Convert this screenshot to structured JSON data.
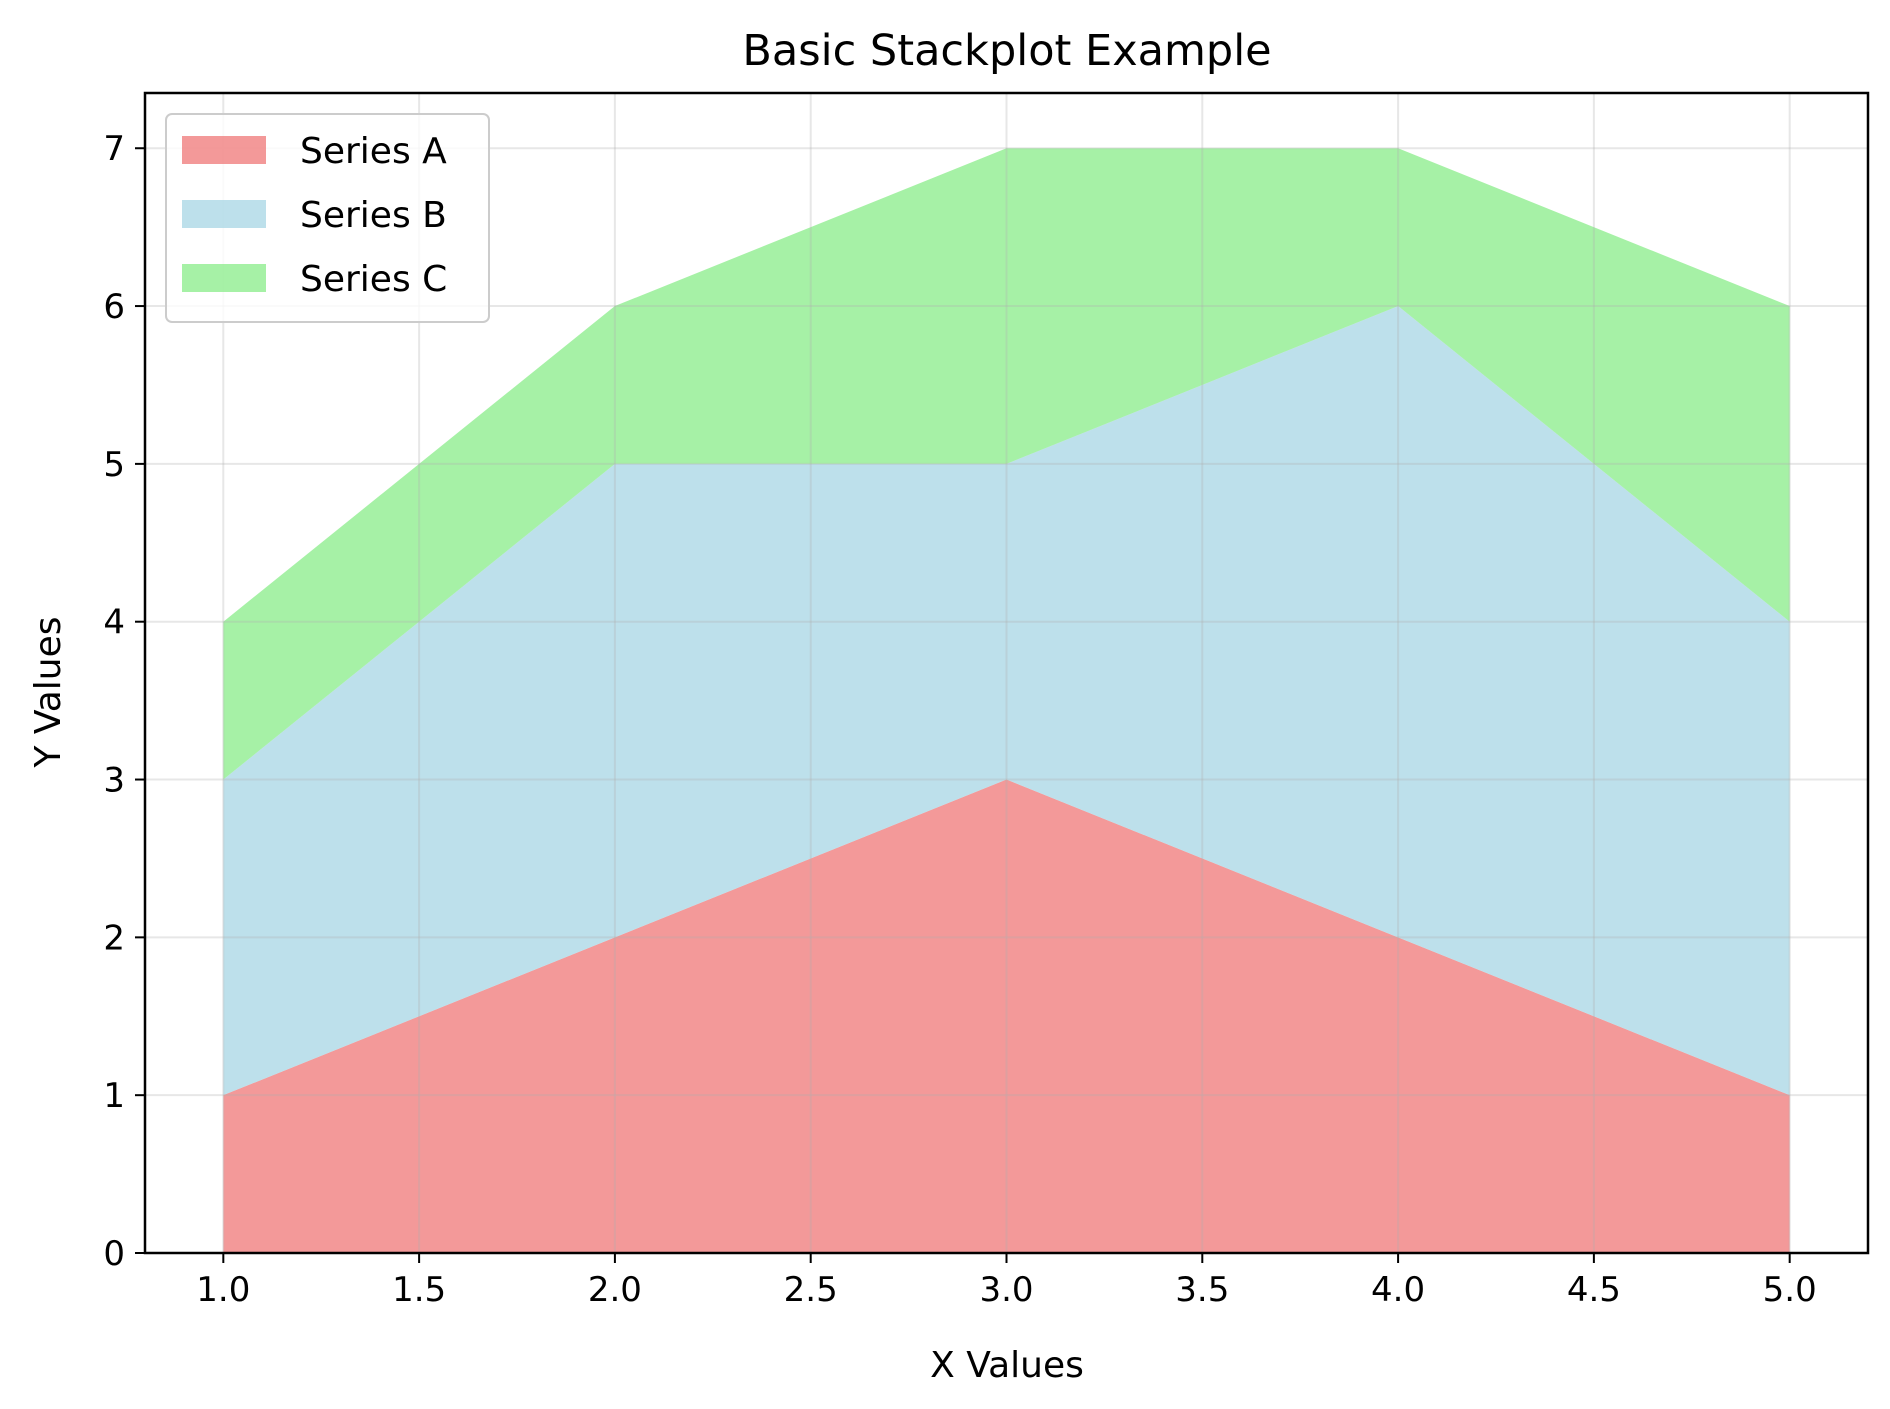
{
  "chart_data": {
    "type": "area",
    "stacked": true,
    "title": "Basic Stackplot Example",
    "xlabel": "X Values",
    "ylabel": "Y Values",
    "x": [
      1,
      2,
      3,
      4,
      5
    ],
    "xlim": [
      0.8,
      5.2
    ],
    "ylim": [
      0,
      7.35
    ],
    "xticks": [
      "1.0",
      "1.5",
      "2.0",
      "2.5",
      "3.0",
      "3.5",
      "4.0",
      "4.5",
      "5.0"
    ],
    "yticks": [
      "0",
      "1",
      "2",
      "3",
      "4",
      "5",
      "6",
      "7"
    ],
    "grid": true,
    "legend_position": "top-left",
    "series": [
      {
        "name": "Series A",
        "values": [
          1,
          2,
          3,
          2,
          1
        ],
        "color": "#F08080"
      },
      {
        "name": "Series B",
        "values": [
          2,
          3,
          2,
          4,
          3
        ],
        "color": "#ADD8E6"
      },
      {
        "name": "Series C",
        "values": [
          1,
          1,
          2,
          1,
          2
        ],
        "color": "#90EE90"
      }
    ]
  }
}
